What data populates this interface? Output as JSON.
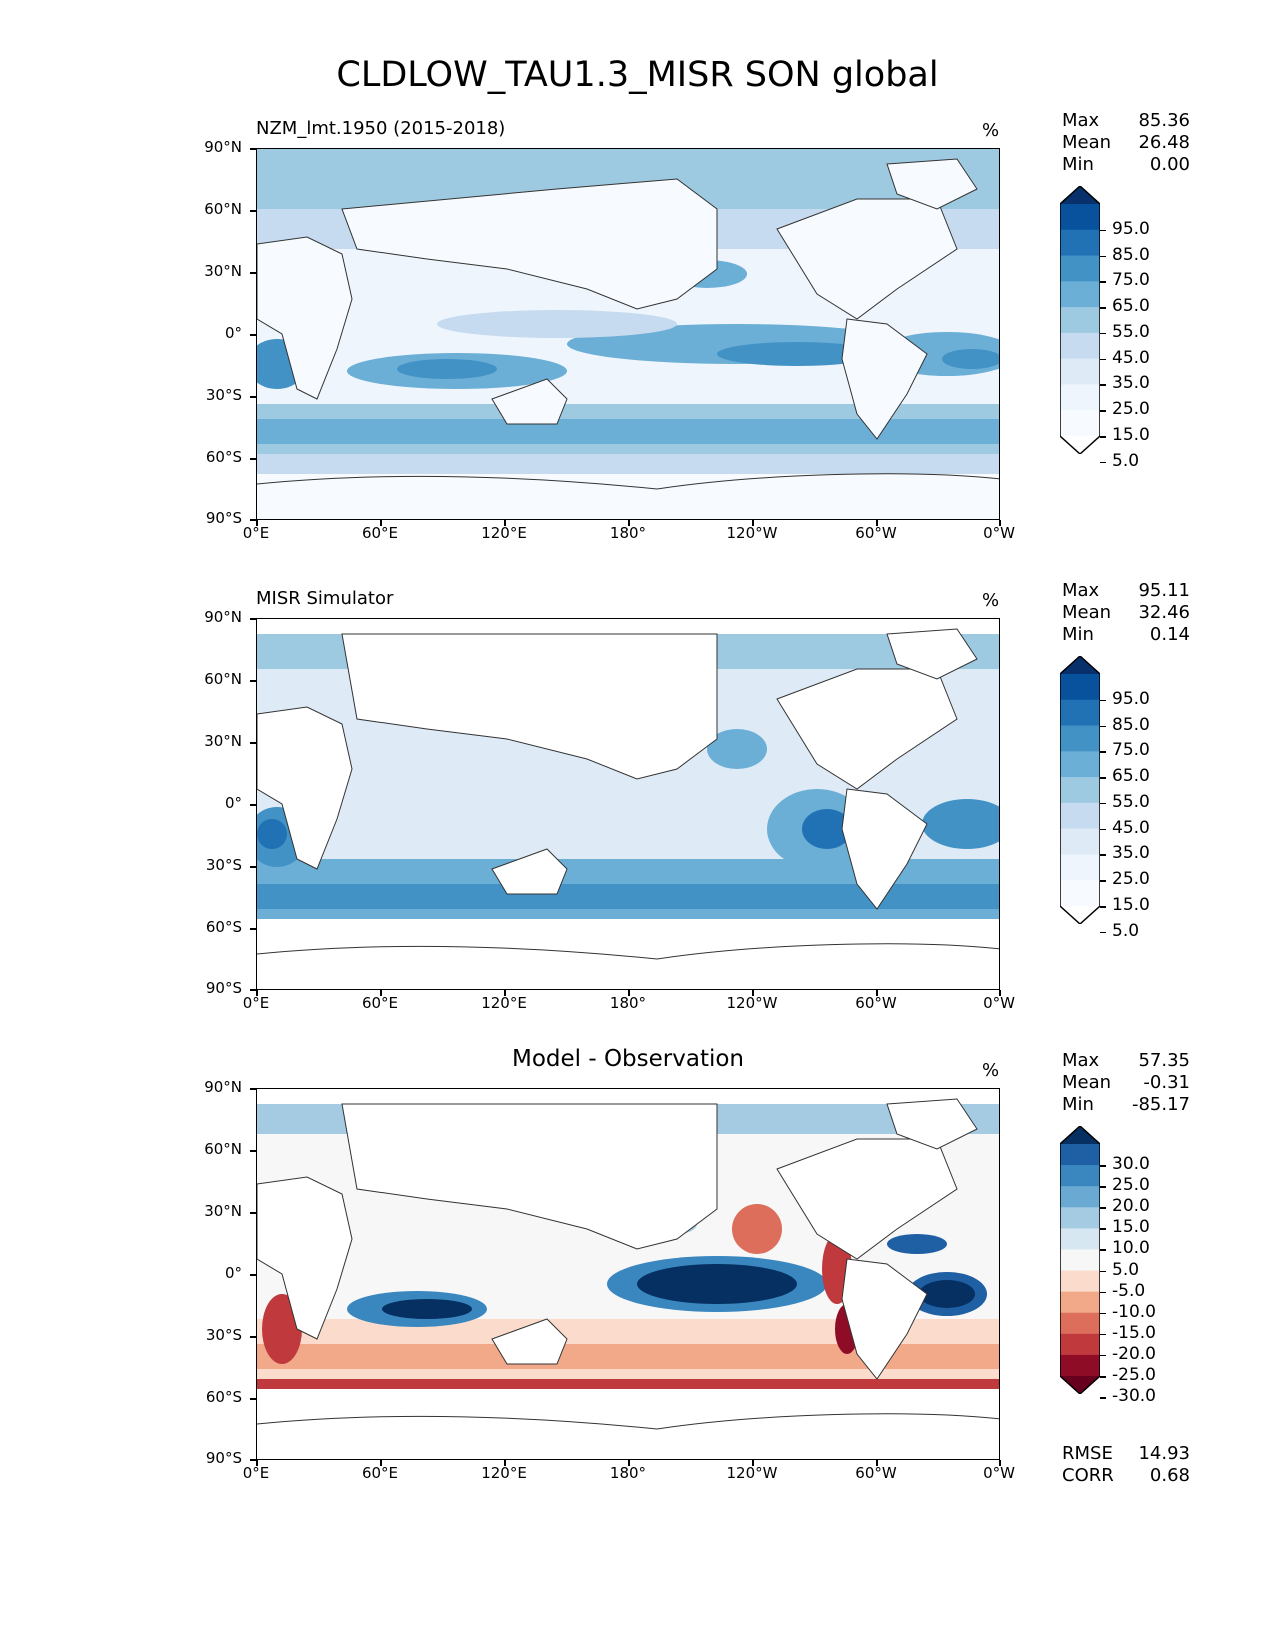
{
  "title": "CLDLOW_TAU1.3_MISR SON global",
  "x_ticks": [
    "0°E",
    "60°E",
    "120°E",
    "180°",
    "120°W",
    "60°W",
    "0°W"
  ],
  "y_ticks": [
    "90°N",
    "60°N",
    "30°N",
    "0°",
    "30°S",
    "60°S",
    "90°S"
  ],
  "panels": [
    {
      "name": "model",
      "title": "NZM_lmt.1950 (2015-2018)",
      "unit": "%",
      "stats": {
        "max_label": "Max",
        "max": "85.36",
        "mean_label": "Mean",
        "mean": "26.48",
        "min_label": "Min",
        "min": "0.00"
      },
      "colorbar": [
        "95.0",
        "85.0",
        "75.0",
        "65.0",
        "55.0",
        "45.0",
        "35.0",
        "25.0",
        "15.0",
        "5.0"
      ],
      "colors": [
        "#08306b",
        "#08519c",
        "#2171b5",
        "#4292c6",
        "#6baed6",
        "#9ecae1",
        "#c6dbef",
        "#deebf7",
        "#eef5fc",
        "#f7fbff",
        "#ffffff"
      ]
    },
    {
      "name": "obs",
      "title": "MISR Simulator",
      "unit": "%",
      "stats": {
        "max_label": "Max",
        "max": "95.11",
        "mean_label": "Mean",
        "mean": "32.46",
        "min_label": "Min",
        "min": "0.14"
      },
      "colorbar": [
        "95.0",
        "85.0",
        "75.0",
        "65.0",
        "55.0",
        "45.0",
        "35.0",
        "25.0",
        "15.0",
        "5.0"
      ],
      "colors": [
        "#08306b",
        "#08519c",
        "#2171b5",
        "#4292c6",
        "#6baed6",
        "#9ecae1",
        "#c6dbef",
        "#deebf7",
        "#eef5fc",
        "#f7fbff",
        "#ffffff"
      ]
    },
    {
      "name": "diff",
      "title": "Model - Observation",
      "unit": "%",
      "stats": {
        "max_label": "Max",
        "max": "57.35",
        "mean_label": "Mean",
        "mean": "-0.31",
        "min_label": "Min",
        "min": "-85.17"
      },
      "colorbar": [
        "30.0",
        "25.0",
        "20.0",
        "15.0",
        "10.0",
        "5.0",
        "-5.0",
        "-10.0",
        "-15.0",
        "-20.0",
        "-25.0",
        "-30.0"
      ],
      "colors": [
        "#053061",
        "#1f5fa4",
        "#3a87bf",
        "#6aa9d1",
        "#a4cbe2",
        "#d6e7f1",
        "#f7f7f7",
        "#fbdccc",
        "#f2a98a",
        "#dc6e5b",
        "#c0393d",
        "#8e0c26",
        "#67001f"
      ],
      "footer": {
        "rmse_label": "RMSE",
        "rmse": "14.93",
        "corr_label": "CORR",
        "corr": "0.68"
      }
    }
  ]
}
